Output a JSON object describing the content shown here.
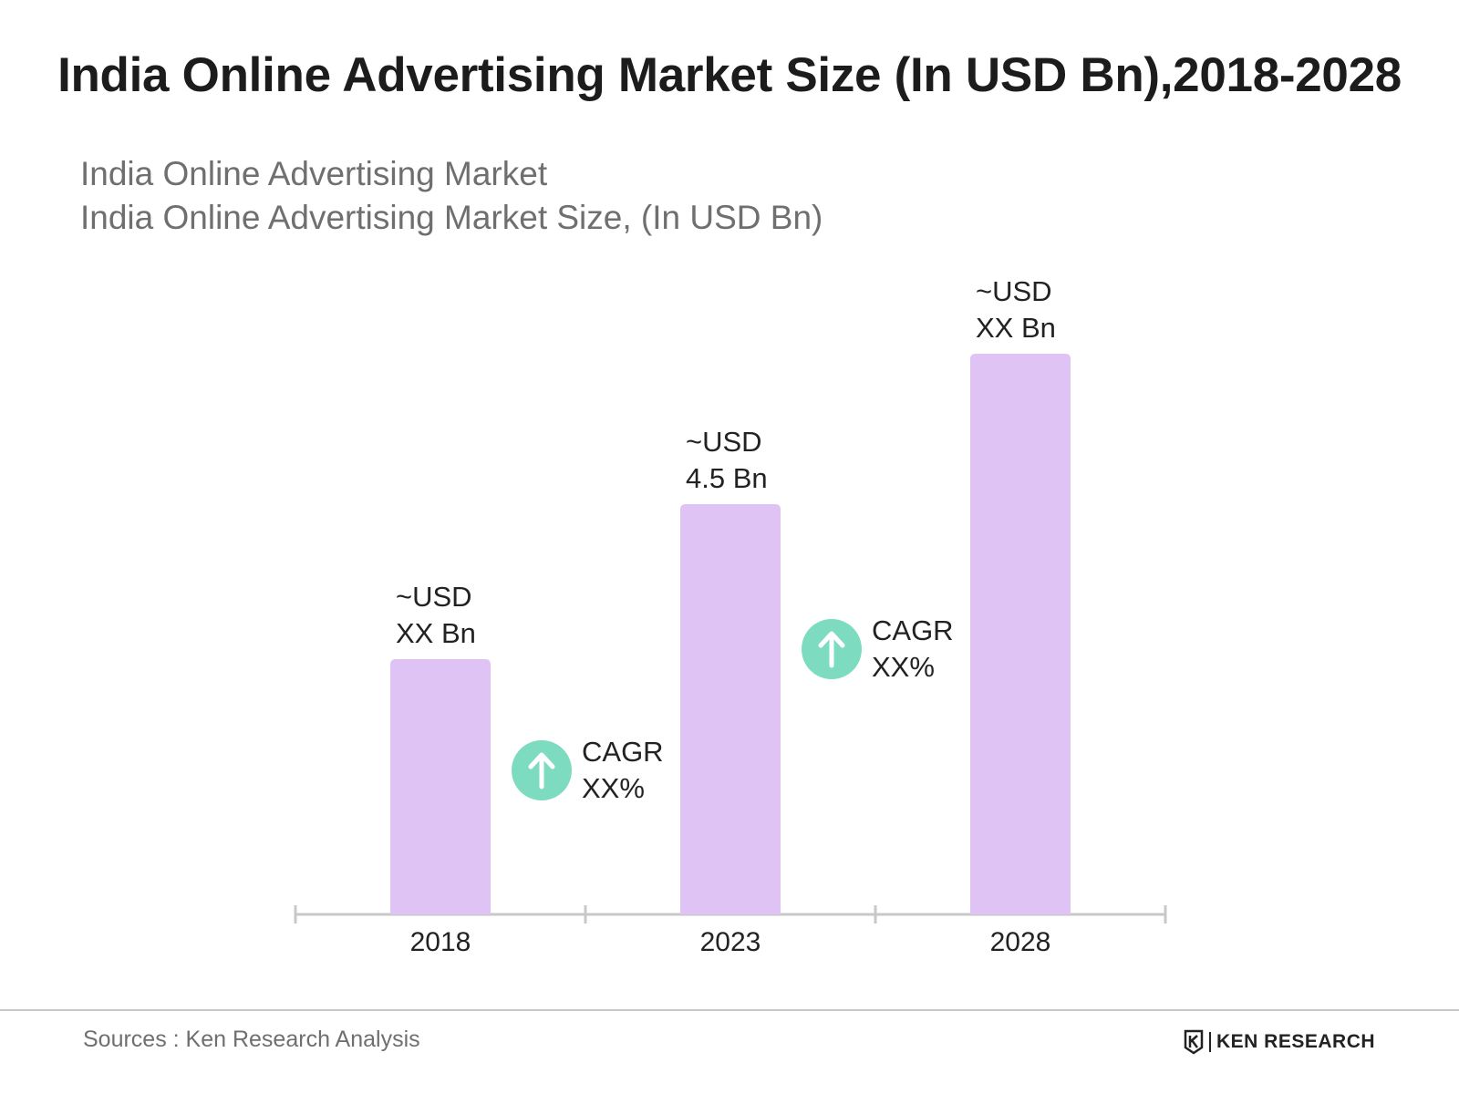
{
  "header": {
    "title": "India Online Advertising Market Size (In USD Bn),2018-2028",
    "subtitle_line1": "India Online Advertising Market",
    "subtitle_line2": "India Online Advertising Market Size, (In USD Bn)"
  },
  "chart_data": {
    "type": "bar",
    "categories": [
      "2018",
      "2023",
      "2028"
    ],
    "values": [
      2.8,
      4.5,
      6.15
    ],
    "ylim": [
      0,
      7
    ],
    "bar_labels": [
      [
        "~USD",
        "XX Bn"
      ],
      [
        "~USD",
        "4.5 Bn"
      ],
      [
        "~USD",
        "XX Bn"
      ]
    ],
    "annotations": [
      {
        "between": [
          "2018",
          "2023"
        ],
        "lines": [
          "CAGR",
          "XX%"
        ],
        "icon": "up-arrow-icon"
      },
      {
        "between": [
          "2023",
          "2028"
        ],
        "lines": [
          "CAGR",
          "XX%"
        ],
        "icon": "up-arrow-icon"
      }
    ],
    "colors": {
      "bar": "#dfc3f5",
      "cagr_circle": "#7ddcc0",
      "axis": "#c8c8c8",
      "text": "#222222"
    },
    "grid": false,
    "legend": "none"
  },
  "footer": {
    "source": "Sources : Ken Research Analysis",
    "brand": "KEN RESEARCH",
    "brand_icon": "ken-research-logo"
  }
}
